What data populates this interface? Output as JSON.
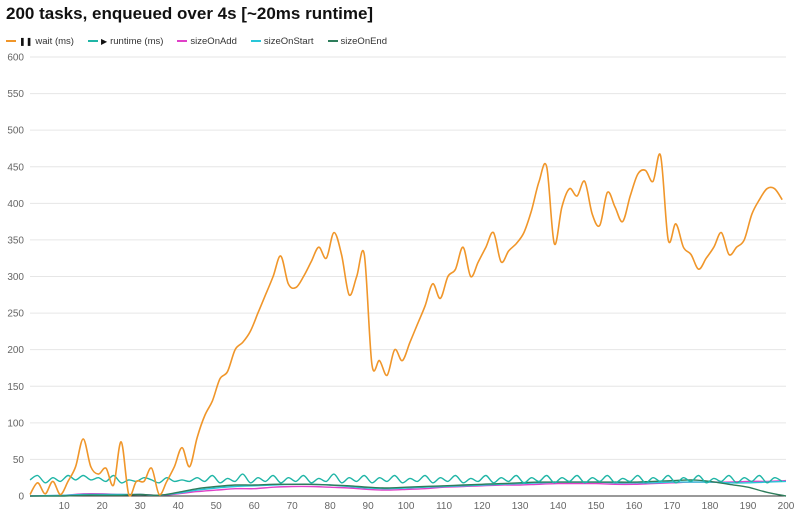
{
  "chart_data": {
    "type": "line",
    "title": "200 tasks, enqueued over 4s [~20ms runtime]",
    "xlabel": "",
    "ylabel": "",
    "xlim": [
      1,
      200
    ],
    "ylim": [
      0,
      600
    ],
    "x_ticks": [
      10,
      20,
      30,
      40,
      50,
      60,
      70,
      80,
      90,
      100,
      110,
      120,
      130,
      140,
      150,
      160,
      170,
      180,
      190,
      200
    ],
    "y_ticks": [
      0,
      50,
      100,
      150,
      200,
      250,
      300,
      350,
      400,
      450,
      500,
      550,
      600
    ],
    "grid": "horizontal",
    "legend_position": "top-left",
    "series": [
      {
        "name": "wait (ms)",
        "legend_glyph": "❚❚",
        "color": "#f0962a",
        "points": [
          [
            1,
            2
          ],
          [
            3,
            18
          ],
          [
            5,
            3
          ],
          [
            7,
            20
          ],
          [
            9,
            2
          ],
          [
            11,
            20
          ],
          [
            13,
            40
          ],
          [
            15,
            78
          ],
          [
            17,
            40
          ],
          [
            19,
            30
          ],
          [
            21,
            38
          ],
          [
            23,
            15
          ],
          [
            25,
            74
          ],
          [
            27,
            2
          ],
          [
            29,
            20
          ],
          [
            31,
            20
          ],
          [
            33,
            38
          ],
          [
            35,
            2
          ],
          [
            37,
            20
          ],
          [
            39,
            40
          ],
          [
            41,
            66
          ],
          [
            43,
            40
          ],
          [
            45,
            80
          ],
          [
            47,
            110
          ],
          [
            49,
            130
          ],
          [
            51,
            160
          ],
          [
            53,
            170
          ],
          [
            55,
            200
          ],
          [
            57,
            210
          ],
          [
            59,
            225
          ],
          [
            61,
            250
          ],
          [
            63,
            275
          ],
          [
            65,
            300
          ],
          [
            67,
            328
          ],
          [
            69,
            290
          ],
          [
            71,
            285
          ],
          [
            73,
            300
          ],
          [
            75,
            320
          ],
          [
            77,
            340
          ],
          [
            79,
            325
          ],
          [
            81,
            360
          ],
          [
            83,
            330
          ],
          [
            85,
            275
          ],
          [
            87,
            300
          ],
          [
            89,
            330
          ],
          [
            91,
            180
          ],
          [
            93,
            185
          ],
          [
            95,
            165
          ],
          [
            97,
            200
          ],
          [
            99,
            185
          ],
          [
            101,
            210
          ],
          [
            103,
            235
          ],
          [
            105,
            260
          ],
          [
            107,
            290
          ],
          [
            109,
            270
          ],
          [
            111,
            300
          ],
          [
            113,
            310
          ],
          [
            115,
            340
          ],
          [
            117,
            300
          ],
          [
            119,
            320
          ],
          [
            121,
            340
          ],
          [
            123,
            360
          ],
          [
            125,
            320
          ],
          [
            127,
            335
          ],
          [
            129,
            345
          ],
          [
            131,
            360
          ],
          [
            133,
            390
          ],
          [
            135,
            430
          ],
          [
            137,
            450
          ],
          [
            139,
            345
          ],
          [
            141,
            395
          ],
          [
            143,
            420
          ],
          [
            145,
            410
          ],
          [
            147,
            430
          ],
          [
            149,
            385
          ],
          [
            151,
            370
          ],
          [
            153,
            415
          ],
          [
            155,
            395
          ],
          [
            157,
            375
          ],
          [
            159,
            410
          ],
          [
            161,
            440
          ],
          [
            163,
            445
          ],
          [
            165,
            430
          ],
          [
            167,
            465
          ],
          [
            169,
            350
          ],
          [
            171,
            372
          ],
          [
            173,
            340
          ],
          [
            175,
            330
          ],
          [
            177,
            310
          ],
          [
            179,
            325
          ],
          [
            181,
            340
          ],
          [
            183,
            360
          ],
          [
            185,
            330
          ],
          [
            187,
            340
          ],
          [
            189,
            350
          ],
          [
            191,
            385
          ],
          [
            193,
            405
          ],
          [
            195,
            420
          ],
          [
            197,
            420
          ],
          [
            199,
            405
          ]
        ]
      },
      {
        "name": "runtime (ms)",
        "legend_glyph": "▶",
        "color": "#1fb5a6",
        "points": [
          [
            1,
            22
          ],
          [
            3,
            28
          ],
          [
            5,
            18
          ],
          [
            7,
            25
          ],
          [
            9,
            20
          ],
          [
            11,
            28
          ],
          [
            13,
            22
          ],
          [
            15,
            28
          ],
          [
            17,
            22
          ],
          [
            19,
            25
          ],
          [
            21,
            20
          ],
          [
            23,
            28
          ],
          [
            25,
            18
          ],
          [
            27,
            22
          ],
          [
            29,
            20
          ],
          [
            31,
            25
          ],
          [
            33,
            22
          ],
          [
            35,
            18
          ],
          [
            37,
            25
          ],
          [
            39,
            20
          ],
          [
            41,
            22
          ],
          [
            43,
            20
          ],
          [
            45,
            25
          ],
          [
            47,
            20
          ],
          [
            49,
            28
          ],
          [
            51,
            18
          ],
          [
            53,
            24
          ],
          [
            55,
            20
          ],
          [
            57,
            30
          ],
          [
            59,
            18
          ],
          [
            61,
            25
          ],
          [
            63,
            20
          ],
          [
            65,
            28
          ],
          [
            67,
            18
          ],
          [
            69,
            25
          ],
          [
            71,
            20
          ],
          [
            73,
            28
          ],
          [
            75,
            18
          ],
          [
            77,
            24
          ],
          [
            79,
            20
          ],
          [
            81,
            30
          ],
          [
            83,
            18
          ],
          [
            85,
            25
          ],
          [
            87,
            20
          ],
          [
            89,
            28
          ],
          [
            91,
            18
          ],
          [
            93,
            25
          ],
          [
            95,
            20
          ],
          [
            97,
            28
          ],
          [
            99,
            18
          ],
          [
            101,
            24
          ],
          [
            103,
            20
          ],
          [
            105,
            28
          ],
          [
            107,
            18
          ],
          [
            109,
            25
          ],
          [
            111,
            20
          ],
          [
            113,
            28
          ],
          [
            115,
            18
          ],
          [
            117,
            24
          ],
          [
            119,
            20
          ],
          [
            121,
            28
          ],
          [
            123,
            18
          ],
          [
            125,
            25
          ],
          [
            127,
            20
          ],
          [
            129,
            28
          ],
          [
            131,
            18
          ],
          [
            133,
            25
          ],
          [
            135,
            20
          ],
          [
            137,
            28
          ],
          [
            139,
            18
          ],
          [
            141,
            25
          ],
          [
            143,
            20
          ],
          [
            145,
            28
          ],
          [
            147,
            18
          ],
          [
            149,
            25
          ],
          [
            151,
            20
          ],
          [
            153,
            28
          ],
          [
            155,
            18
          ],
          [
            157,
            24
          ],
          [
            159,
            20
          ],
          [
            161,
            28
          ],
          [
            163,
            18
          ],
          [
            165,
            25
          ],
          [
            167,
            20
          ],
          [
            169,
            28
          ],
          [
            171,
            18
          ],
          [
            173,
            25
          ],
          [
            175,
            20
          ],
          [
            177,
            28
          ],
          [
            179,
            18
          ],
          [
            181,
            24
          ],
          [
            183,
            20
          ],
          [
            185,
            28
          ],
          [
            187,
            18
          ],
          [
            189,
            25
          ],
          [
            191,
            20
          ],
          [
            193,
            28
          ],
          [
            195,
            18
          ],
          [
            197,
            25
          ],
          [
            199,
            20
          ]
        ]
      },
      {
        "name": "sizeOnAdd",
        "color": "#e040c8",
        "points": [
          [
            1,
            0
          ],
          [
            10,
            1
          ],
          [
            15,
            3
          ],
          [
            20,
            3
          ],
          [
            25,
            2
          ],
          [
            30,
            2
          ],
          [
            35,
            1
          ],
          [
            40,
            3
          ],
          [
            45,
            6
          ],
          [
            50,
            8
          ],
          [
            55,
            10
          ],
          [
            60,
            10
          ],
          [
            65,
            12
          ],
          [
            70,
            13
          ],
          [
            75,
            13
          ],
          [
            80,
            12
          ],
          [
            85,
            11
          ],
          [
            90,
            9
          ],
          [
            95,
            8
          ],
          [
            100,
            9
          ],
          [
            105,
            10
          ],
          [
            110,
            12
          ],
          [
            115,
            13
          ],
          [
            120,
            14
          ],
          [
            125,
            15
          ],
          [
            130,
            15
          ],
          [
            135,
            16
          ],
          [
            140,
            17
          ],
          [
            145,
            17
          ],
          [
            150,
            17
          ],
          [
            155,
            16
          ],
          [
            160,
            16
          ],
          [
            165,
            17
          ],
          [
            170,
            18
          ],
          [
            175,
            19
          ],
          [
            180,
            19
          ],
          [
            185,
            19
          ],
          [
            190,
            20
          ],
          [
            195,
            20
          ],
          [
            200,
            21
          ]
        ]
      },
      {
        "name": "sizeOnStart",
        "color": "#29c6d8",
        "points": [
          [
            1,
            0
          ],
          [
            10,
            1
          ],
          [
            15,
            2
          ],
          [
            20,
            2
          ],
          [
            25,
            2
          ],
          [
            30,
            2
          ],
          [
            35,
            1
          ],
          [
            40,
            4
          ],
          [
            45,
            8
          ],
          [
            50,
            11
          ],
          [
            55,
            13
          ],
          [
            60,
            14
          ],
          [
            65,
            15
          ],
          [
            70,
            16
          ],
          [
            75,
            16
          ],
          [
            80,
            15
          ],
          [
            85,
            13
          ],
          [
            90,
            11
          ],
          [
            95,
            10
          ],
          [
            100,
            11
          ],
          [
            105,
            12
          ],
          [
            110,
            13
          ],
          [
            115,
            14
          ],
          [
            120,
            15
          ],
          [
            125,
            16
          ],
          [
            130,
            17
          ],
          [
            135,
            18
          ],
          [
            140,
            19
          ],
          [
            145,
            19
          ],
          [
            150,
            19
          ],
          [
            155,
            18
          ],
          [
            160,
            18
          ],
          [
            165,
            18
          ],
          [
            170,
            19
          ],
          [
            175,
            19
          ],
          [
            180,
            19
          ],
          [
            185,
            18
          ],
          [
            190,
            18
          ],
          [
            195,
            19
          ],
          [
            200,
            20
          ]
        ]
      },
      {
        "name": "sizeOnEnd",
        "color": "#2e7d5b",
        "points": [
          [
            1,
            0
          ],
          [
            10,
            0
          ],
          [
            15,
            1
          ],
          [
            20,
            1
          ],
          [
            25,
            1
          ],
          [
            30,
            2
          ],
          [
            35,
            1
          ],
          [
            40,
            5
          ],
          [
            45,
            10
          ],
          [
            50,
            13
          ],
          [
            55,
            15
          ],
          [
            60,
            15
          ],
          [
            65,
            16
          ],
          [
            70,
            16
          ],
          [
            75,
            16
          ],
          [
            80,
            15
          ],
          [
            85,
            14
          ],
          [
            90,
            12
          ],
          [
            95,
            11
          ],
          [
            100,
            12
          ],
          [
            105,
            13
          ],
          [
            110,
            14
          ],
          [
            115,
            15
          ],
          [
            120,
            16
          ],
          [
            125,
            17
          ],
          [
            130,
            18
          ],
          [
            135,
            19
          ],
          [
            140,
            19
          ],
          [
            145,
            19
          ],
          [
            150,
            19
          ],
          [
            155,
            19
          ],
          [
            160,
            19
          ],
          [
            165,
            20
          ],
          [
            170,
            21
          ],
          [
            175,
            22
          ],
          [
            180,
            20
          ],
          [
            185,
            16
          ],
          [
            190,
            12
          ],
          [
            195,
            5
          ],
          [
            200,
            0
          ]
        ]
      }
    ]
  }
}
